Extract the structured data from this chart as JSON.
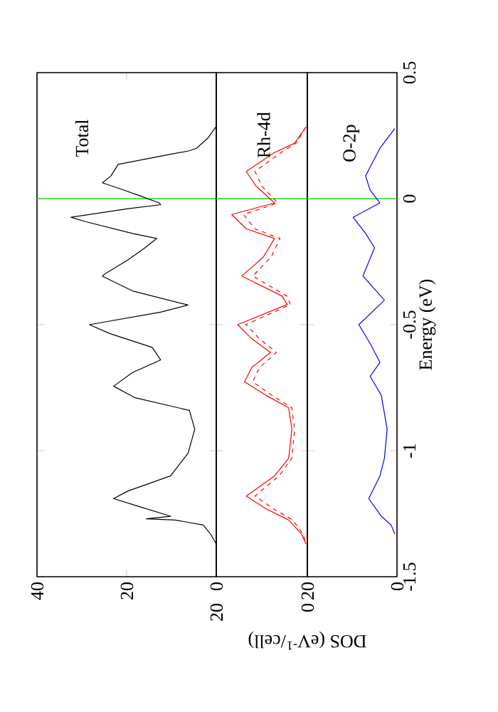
{
  "chart_data": [
    {
      "type": "line",
      "annotations": [
        "Total"
      ],
      "color": "#000000",
      "x": [
        0.1,
        1.9,
        4.4,
        6,
        10.2,
        21.9,
        23.5,
        25.4,
        20.6,
        17,
        12.7,
        12.4,
        19.7,
        32.4,
        29.2,
        18.7,
        13.3,
        15.9,
        19.7,
        25,
        25.4,
        18.7,
        6.3,
        12.4,
        28.3,
        23.8,
        14.3,
        12.4,
        18.7,
        22.9,
        18.1,
        6,
        4.8,
        6.3,
        10.2,
        19.7,
        22.9,
        17.5,
        10.2,
        15.6,
        9.2,
        2.9,
        1.3,
        0
      ],
      "values": [
        0.284,
        0.24,
        0.2,
        0.19,
        0.176,
        0.136,
        0.09,
        0.063,
        0.034,
        0.011,
        -0.017,
        -0.024,
        -0.04,
        -0.074,
        -0.091,
        -0.138,
        -0.158,
        -0.195,
        -0.243,
        -0.3,
        -0.308,
        -0.366,
        -0.422,
        -0.45,
        -0.5,
        -0.535,
        -0.59,
        -0.64,
        -0.69,
        -0.744,
        -0.79,
        -0.84,
        -0.915,
        -1.01,
        -1.1,
        -1.16,
        -1.19,
        -1.22,
        -1.26,
        -1.27,
        -1.275,
        -1.295,
        -1.33,
        -1.37
      ],
      "xlim": [
        40,
        0
      ],
      "xticks": [
        0,
        20,
        40
      ],
      "ylim": [
        -1.5,
        0.5
      ],
      "yticks": [
        -1.5,
        -1,
        -0.5,
        0,
        0.5
      ],
      "tick_labels": "x",
      "ref_lines": [
        {
          "axis": "y",
          "value": 0,
          "color": "#22dd22"
        }
      ]
    },
    {
      "type": "line",
      "annotations": [
        "Rh-4d"
      ],
      "xlabel": "DOS (eV$^{-1}$/cell)",
      "series": [
        {
          "color": "#ff0000",
          "line_style": "solid",
          "x": [
            0.3,
            2.8,
            7.5,
            13.4,
            11.3,
            7.2,
            16.6,
            13.4,
            7.2,
            9.7,
            14.4,
            5.6,
            4.4,
            15.3,
            12.2,
            8.1,
            12.2,
            13.8,
            9.1,
            4.1,
            3.4,
            4.1,
            7.2,
            13.4,
            9.1,
            4.1,
            1.3,
            0.3
          ],
          "values": [
            0.284,
            0.22,
            0.18,
            0.108,
            0.05,
            -0.017,
            -0.063,
            -0.12,
            -0.158,
            -0.233,
            -0.307,
            -0.386,
            -0.42,
            -0.5,
            -0.556,
            -0.61,
            -0.67,
            -0.727,
            -0.78,
            -0.83,
            -0.915,
            -1.03,
            -1.1,
            -1.18,
            -1.23,
            -1.275,
            -1.33,
            -1.37
          ]
        },
        {
          "color": "#ff0000",
          "line_style": "dashed",
          "x": [
            0.3,
            2.5,
            6,
            11.5,
            10,
            6.5,
            14,
            11.5,
            6,
            8,
            12,
            4.5,
            3.7,
            13.5,
            10.5,
            6.8,
            10.5,
            12,
            7.8,
            3.4,
            2.8,
            3.4,
            6.2,
            11.5,
            7.5,
            3.2,
            1,
            0.2
          ],
          "values": [
            0.284,
            0.22,
            0.18,
            0.108,
            0.05,
            -0.017,
            -0.063,
            -0.12,
            -0.158,
            -0.233,
            -0.307,
            -0.386,
            -0.42,
            -0.5,
            -0.556,
            -0.61,
            -0.67,
            -0.727,
            -0.78,
            -0.83,
            -0.915,
            -1.03,
            -1.1,
            -1.18,
            -1.23,
            -1.275,
            -1.33,
            -1.37
          ]
        }
      ],
      "xlim": [
        20,
        0
      ],
      "xticks": [
        0,
        20
      ],
      "ylim": [
        -1.5,
        0.5
      ],
      "yticks": [
        -1.5,
        -1,
        -0.5,
        0,
        0.5
      ],
      "tick_labels": "x",
      "ref_lines": [
        {
          "axis": "y",
          "value": 0,
          "color": "#22dd22"
        }
      ]
    },
    {
      "type": "line",
      "annotations": [
        "O-2p"
      ],
      "ylabel": "Energy (eV)",
      "color": "#0000ff",
      "x": [
        0.5,
        3.8,
        6,
        7,
        6,
        3.8,
        9.8,
        7,
        5,
        7.6,
        2.8,
        8.5,
        6,
        3.8,
        6,
        3.5,
        2.2,
        2.8,
        3.8,
        6.3,
        3.5,
        1.3,
        0.5
      ],
      "values": [
        0.278,
        0.2,
        0.125,
        0.09,
        0.034,
        -0.017,
        -0.074,
        -0.138,
        -0.195,
        -0.307,
        -0.403,
        -0.5,
        -0.574,
        -0.65,
        -0.705,
        -0.78,
        -0.915,
        -1.03,
        -1.1,
        -1.19,
        -1.26,
        -1.295,
        -1.33
      ],
      "xlim": [
        20,
        0
      ],
      "xticks": [
        0,
        20
      ],
      "ylim": [
        -1.5,
        0.5
      ],
      "yticks": [
        -1.5,
        -1,
        -0.5,
        0,
        0.5
      ],
      "ref_lines": [
        {
          "axis": "y",
          "value": 0,
          "color": "#22dd22"
        }
      ]
    }
  ]
}
